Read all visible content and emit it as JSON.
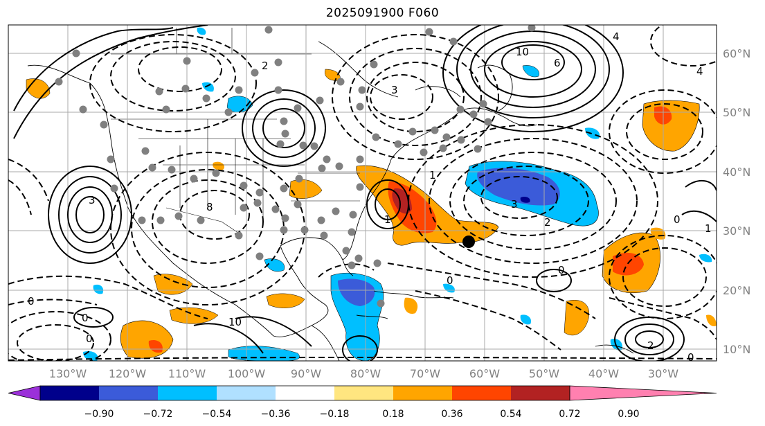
{
  "title": "2025091900 F060",
  "map": {
    "type": "contour-map",
    "lon_range": [
      -138,
      -19
    ],
    "lat_range": [
      8,
      66
    ],
    "lon_ticks": [
      "130°W",
      "120°W",
      "110°W",
      "100°W",
      "90°W",
      "80°W",
      "70°W",
      "60°W",
      "50°W",
      "40°W",
      "30°W"
    ],
    "lat_ticks": [
      "60°N",
      "50°N",
      "40°N",
      "30°N",
      "20°N",
      "10°N"
    ],
    "gridlines": true,
    "land_features": [
      "coastlines",
      "country borders",
      "state borders"
    ]
  },
  "colorbar": {
    "ticks": [
      "−0.90",
      "−0.72",
      "−0.54",
      "−0.36",
      "−0.18",
      "0.18",
      "0.36",
      "0.54",
      "0.72",
      "0.90"
    ],
    "colors": [
      "#9b30d9",
      "#00008b",
      "#3b5bd9",
      "#00bfff",
      "#b0e0ff",
      "#ffffff",
      "#ffe680",
      "#ffa500",
      "#ff4500",
      "#b22222",
      "#ff80b0"
    ],
    "extend": "both"
  },
  "contour_labels": [
    "0",
    "0",
    "0",
    "0",
    "0",
    "0",
    "0",
    "1",
    "1",
    "1",
    "2",
    "2",
    "2",
    "3",
    "3",
    "3",
    "4",
    "4",
    "6",
    "8",
    "10",
    "10"
  ],
  "legend_markers": {
    "gray_dot_color": "#808080",
    "black_dot_color": "#000000"
  }
}
